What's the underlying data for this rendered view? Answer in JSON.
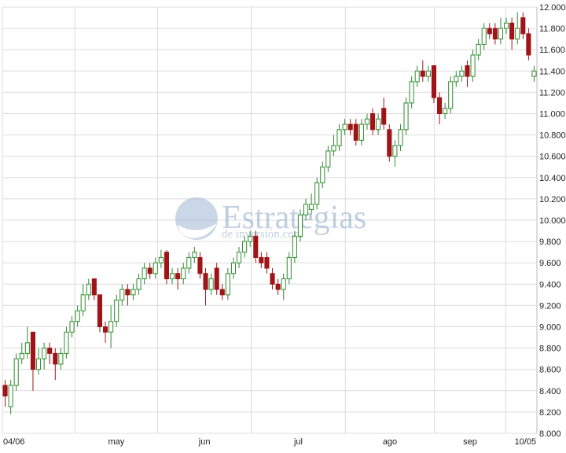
{
  "chart_data": {
    "type": "candlestick",
    "watermark": {
      "brand": "Estrategias",
      "sub": "de inversión.com"
    },
    "xlim": [
      0,
      96
    ],
    "xticks": [
      {
        "value": 0,
        "label": "04/06"
      },
      {
        "value": 13,
        "label": "may"
      },
      {
        "value": 27.9,
        "label": "jun"
      },
      {
        "value": 44.7,
        "label": "jul"
      },
      {
        "value": 61.6,
        "label": "ago"
      },
      {
        "value": 77.6,
        "label": "sep"
      },
      {
        "value": 90.4,
        "label": "10/05"
      }
    ],
    "ylim": [
      8000,
      12000
    ],
    "yticks": [
      {
        "value": 8000,
        "label": "8.000"
      },
      {
        "value": 8200,
        "label": "8.200"
      },
      {
        "value": 8400,
        "label": "8.400"
      },
      {
        "value": 8600,
        "label": "8.600"
      },
      {
        "value": 8800,
        "label": "8.800"
      },
      {
        "value": 9000,
        "label": "9.000"
      },
      {
        "value": 9200,
        "label": "9.200"
      },
      {
        "value": 9400,
        "label": "9.400"
      },
      {
        "value": 9600,
        "label": "9.600"
      },
      {
        "value": 9800,
        "label": "9.800"
      },
      {
        "value": 10000,
        "label": "10.000"
      },
      {
        "value": 10200,
        "label": "10.200"
      },
      {
        "value": 10400,
        "label": "10.400"
      },
      {
        "value": 10600,
        "label": "10.600"
      },
      {
        "value": 10800,
        "label": "10.800"
      },
      {
        "value": 11000,
        "label": "11.000"
      },
      {
        "value": 11200,
        "label": "11.200"
      },
      {
        "value": 11400,
        "label": "11.400"
      },
      {
        "value": 11600,
        "label": "11.600"
      },
      {
        "value": 11800,
        "label": "11.800"
      },
      {
        "value": 12000,
        "label": "12.000"
      }
    ],
    "grid": true,
    "up_color": "#2e8b2e",
    "down_color": "#a01418",
    "open": [
      8450,
      8250,
      8450,
      8700,
      8750,
      8950,
      8600,
      8700,
      8800,
      8750,
      8650,
      8750,
      8950,
      9050,
      9150,
      9300,
      9450,
      9300,
      9000,
      8950,
      9050,
      9250,
      9350,
      9300,
      9350,
      9450,
      9550,
      9500,
      9600,
      9700,
      9450,
      9500,
      9450,
      9550,
      9650,
      9650,
      9500,
      9350,
      9550,
      9350,
      9300,
      9500,
      9600,
      9700,
      9800,
      9850,
      9650,
      9650,
      9500,
      9400,
      9350,
      9450,
      9650,
      9850,
      10050,
      10100,
      10150,
      10350,
      10500,
      10650,
      10700,
      10850,
      10900,
      10900,
      10750,
      10900,
      11000,
      10850,
      11050,
      10850,
      10600,
      10700,
      10850,
      11100,
      11300,
      11400,
      11350,
      11450,
      11150,
      11000,
      11050,
      11300,
      11350,
      11450,
      11350,
      11550,
      11650,
      11800,
      11800,
      11700,
      11800,
      11850,
      11700,
      11900,
      11750,
      11350
    ],
    "high": [
      8500,
      8500,
      8750,
      8850,
      9000,
      8950,
      8800,
      8850,
      8850,
      8800,
      8800,
      9000,
      9100,
      9200,
      9400,
      9450,
      9450,
      9300,
      9050,
      9200,
      9300,
      9400,
      9400,
      9400,
      9500,
      9600,
      9600,
      9650,
      9720,
      9720,
      9550,
      9550,
      9600,
      9700,
      9750,
      9700,
      9550,
      9500,
      9600,
      9400,
      9550,
      9650,
      9750,
      9850,
      9900,
      9900,
      9700,
      9700,
      9550,
      9450,
      9500,
      9700,
      9900,
      10100,
      10200,
      10250,
      10400,
      10550,
      10700,
      10800,
      10900,
      10950,
      10950,
      10950,
      10950,
      11000,
      11050,
      11000,
      11150,
      10900,
      10750,
      10900,
      11150,
      11350,
      11450,
      11500,
      11450,
      11450,
      11200,
      11100,
      11350,
      11400,
      11450,
      11500,
      11600,
      11700,
      11850,
      11850,
      11850,
      11900,
      11900,
      11900,
      11950,
      11950,
      11800,
      11450
    ],
    "low": [
      8250,
      8180,
      8400,
      8650,
      8700,
      8400,
      8550,
      8600,
      8650,
      8500,
      8600,
      8700,
      8900,
      9000,
      9100,
      9250,
      9250,
      8950,
      8850,
      8800,
      9000,
      9200,
      9200,
      9250,
      9300,
      9400,
      9450,
      9450,
      9550,
      9400,
      9400,
      9350,
      9400,
      9500,
      9600,
      9450,
      9200,
      9300,
      9300,
      9250,
      9250,
      9450,
      9550,
      9650,
      9750,
      9600,
      9550,
      9500,
      9350,
      9300,
      9250,
      9400,
      9600,
      9800,
      10000,
      10050,
      10100,
      10300,
      10450,
      10600,
      10650,
      10800,
      10800,
      10700,
      10700,
      10850,
      10800,
      10800,
      10850,
      10550,
      10500,
      10650,
      10800,
      11050,
      11250,
      11300,
      11300,
      11100,
      10900,
      10950,
      11000,
      11250,
      11300,
      11250,
      11300,
      11500,
      11600,
      11700,
      11650,
      11650,
      11750,
      11600,
      11650,
      11700,
      11500,
      11300
    ],
    "close": [
      8350,
      8450,
      8700,
      8750,
      8850,
      8600,
      8700,
      8800,
      8750,
      8650,
      8750,
      8950,
      9050,
      9150,
      9300,
      9400,
      9300,
      9000,
      8950,
      9050,
      9250,
      9350,
      9300,
      9350,
      9450,
      9550,
      9500,
      9600,
      9650,
      9450,
      9500,
      9450,
      9550,
      9650,
      9700,
      9500,
      9350,
      9450,
      9350,
      9300,
      9500,
      9600,
      9700,
      9800,
      9850,
      9650,
      9600,
      9550,
      9400,
      9350,
      9450,
      9650,
      9850,
      10050,
      10150,
      10150,
      10350,
      10500,
      10650,
      10700,
      10850,
      10900,
      10850,
      10750,
      10900,
      10950,
      10850,
      10950,
      10900,
      10600,
      10700,
      10850,
      11100,
      11300,
      11400,
      11350,
      11400,
      11150,
      11000,
      11050,
      11300,
      11350,
      11400,
      11350,
      11550,
      11650,
      11800,
      11750,
      11700,
      11800,
      11850,
      11700,
      11800,
      11750,
      11550,
      11400
    ]
  }
}
